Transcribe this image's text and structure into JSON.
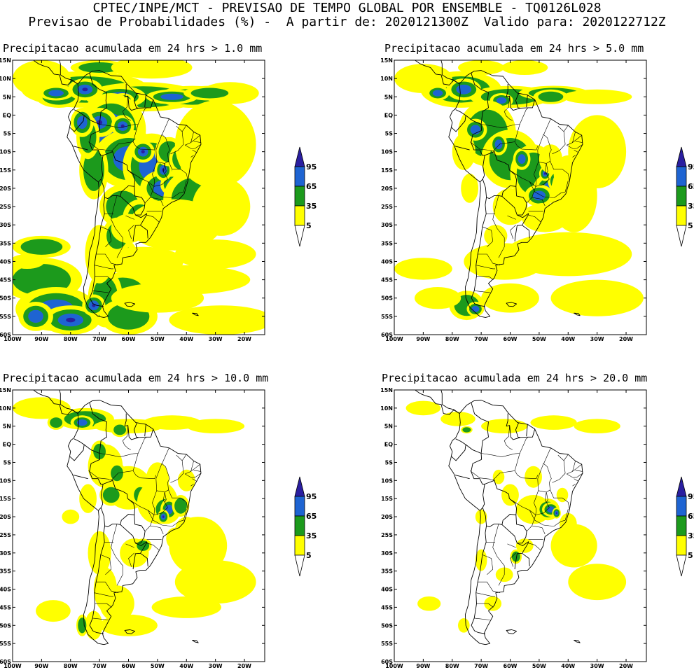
{
  "header": {
    "line1": "CPTEC/INPE/MCT - PREVISAO DE TEMPO GLOBAL POR ENSEMBLE - TQ0126L028",
    "line2": "Previsao de Probabilidades (%) -  A partir de: 2020121300Z  Valido para: 2020122712Z"
  },
  "axes": {
    "lat_labels": [
      "15N",
      "10N",
      "5N",
      "EQ",
      "5S",
      "10S",
      "15S",
      "20S",
      "25S",
      "30S",
      "35S",
      "40S",
      "45S",
      "50S",
      "55S",
      "60S"
    ],
    "lon_labels": [
      "100W",
      "90W",
      "80W",
      "70W",
      "60W",
      "50W",
      "40W",
      "30W",
      "20W"
    ],
    "lat_range": [
      -60,
      15
    ],
    "lon_range": [
      -100,
      -13
    ]
  },
  "legend": {
    "levels": [
      "95",
      "65",
      "35",
      "5"
    ],
    "colors": {
      "class_5_35": "#ffff00",
      "class_35_65": "#1c9a1c",
      "class_65_95": "#1e64d2",
      "class_95_plus": "#2a1ea0",
      "below_5": "#ffffff"
    }
  },
  "colors": {
    "coast": "#000000",
    "yellow": "#ffff00",
    "green": "#1c9a1c",
    "blue": "#1e64d2",
    "navy": "#2a1ea0"
  },
  "panels": [
    {
      "id": "p1",
      "title": "Precipitacao acumulada em 24 hrs > 1.0 mm",
      "threshold_mm": 1.0
    },
    {
      "id": "p2",
      "title": "Precipitacao acumulada em 24 hrs > 5.0 mm",
      "threshold_mm": 5.0
    },
    {
      "id": "p3",
      "title": "Precipitacao acumulada em 24 hrs > 10.0 mm",
      "threshold_mm": 10.0
    },
    {
      "id": "p4",
      "title": "Precipitacao acumulada em 24 hrs > 20.0 mm",
      "threshold_mm": 20.0
    }
  ]
}
